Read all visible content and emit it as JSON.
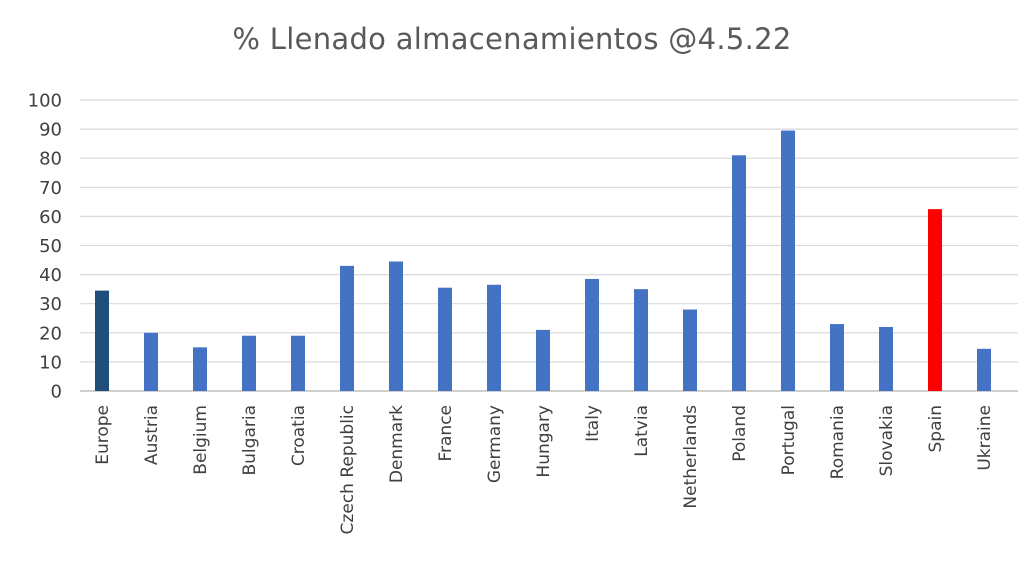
{
  "chart_data": {
    "type": "bar",
    "title": "% Llenado almacenamientos @4.5.22",
    "xlabel": "",
    "ylabel": "",
    "ylim": [
      0,
      100
    ],
    "yticks": [
      0,
      10,
      20,
      30,
      40,
      50,
      60,
      70,
      80,
      90,
      100
    ],
    "grid": true,
    "legend": "none",
    "categories": [
      "Europe",
      "Austria",
      "Belgium",
      "Bulgaria",
      "Croatia",
      "Czech Republic",
      "Denmark",
      "France",
      "Germany",
      "Hungary",
      "Italy",
      "Latvia",
      "Netherlands",
      "Poland",
      "Portugal",
      "Romania",
      "Slovakia",
      "Spain",
      "Ukraine"
    ],
    "values": [
      34.5,
      20,
      15,
      19,
      19,
      43,
      44.5,
      35.5,
      36.5,
      21,
      38.5,
      35,
      28,
      81,
      89.5,
      23,
      22,
      62.5,
      14.5
    ],
    "colors": {
      "default": "#4472C4",
      "Europe": "#1F4E79",
      "Spain": "#FF0000",
      "grid": "#D9D9D9",
      "axis": "#BFBFBF"
    }
  }
}
